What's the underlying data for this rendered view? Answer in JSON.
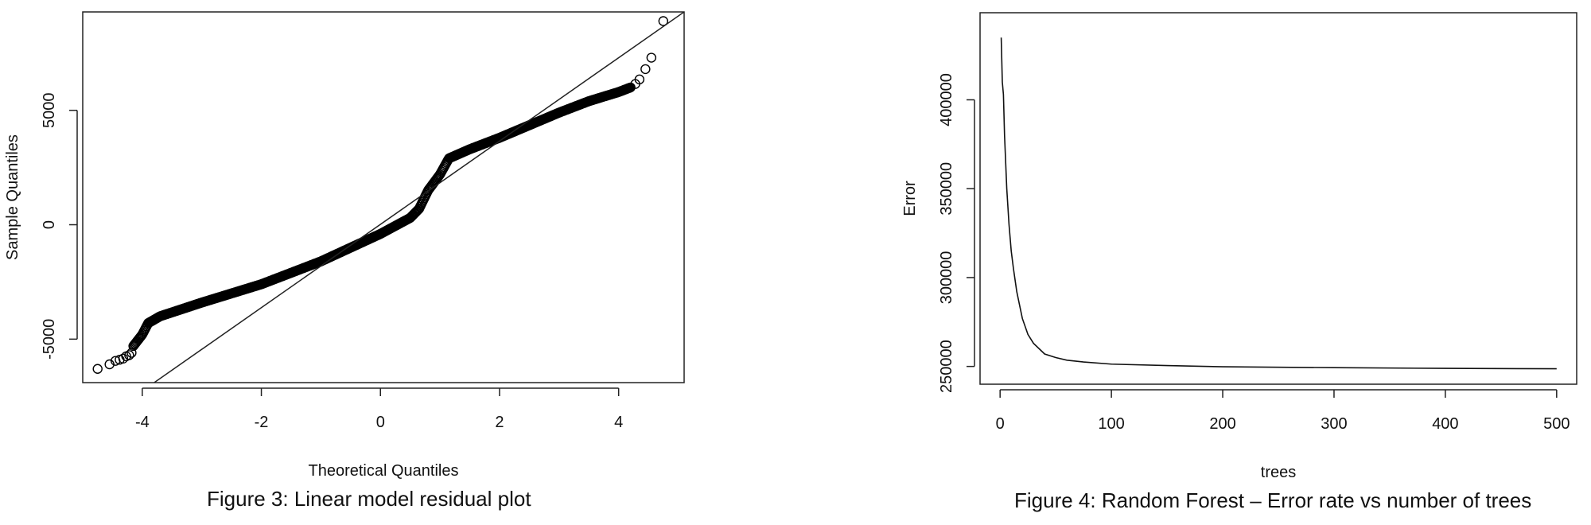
{
  "chart_data": [
    {
      "type": "scatter",
      "subtype": "qq-plot",
      "xlabel": "Theoretical Quantiles",
      "ylabel": "Sample Quantiles",
      "caption": "Figure 3: Linear model residual plot",
      "xlim": [
        -5.0,
        5.1
      ],
      "ylim": [
        -6900,
        9300
      ],
      "x_ticks": [
        -4,
        -2,
        0,
        2,
        4
      ],
      "x_tick_labels": [
        "-4",
        "-2",
        "0",
        "2",
        "4"
      ],
      "y_ticks": [
        -5000,
        0,
        5000
      ],
      "y_tick_labels": [
        "-5000",
        "0",
        "5000"
      ],
      "grid": false,
      "marker": "open-circle",
      "reference_line": [
        [
          -3.8,
          -6900
        ],
        [
          5.1,
          9300
        ]
      ],
      "quantile_curve": [
        [
          -4.15,
          -5300
        ],
        [
          -4.0,
          -4800
        ],
        [
          -3.9,
          -4300
        ],
        [
          -3.7,
          -4000
        ],
        [
          -3.0,
          -3400
        ],
        [
          -2.0,
          -2600
        ],
        [
          -1.0,
          -1600
        ],
        [
          0.0,
          -400
        ],
        [
          0.5,
          300
        ],
        [
          0.65,
          700
        ],
        [
          0.8,
          1500
        ],
        [
          1.0,
          2200
        ],
        [
          1.15,
          2900
        ],
        [
          1.5,
          3300
        ],
        [
          2.0,
          3800
        ],
        [
          3.0,
          4900
        ],
        [
          3.5,
          5400
        ],
        [
          4.0,
          5800
        ],
        [
          4.2,
          6000
        ]
      ],
      "tail_points": [
        [
          -4.75,
          -6300
        ],
        [
          -4.55,
          -6100
        ],
        [
          -4.45,
          -5950
        ],
        [
          -4.38,
          -5900
        ],
        [
          -4.32,
          -5850
        ],
        [
          -4.27,
          -5750
        ],
        [
          -4.22,
          -5700
        ],
        [
          -4.18,
          -5600
        ],
        [
          4.28,
          6150
        ],
        [
          4.35,
          6350
        ],
        [
          4.45,
          6800
        ],
        [
          4.55,
          7300
        ],
        [
          4.75,
          8900
        ]
      ]
    },
    {
      "type": "line",
      "xlabel": "trees",
      "ylabel": "Error",
      "caption": "Figure 4: Random Forest – Error rate vs number of trees",
      "xlim": [
        -18,
        518
      ],
      "ylim": [
        240000,
        449000
      ],
      "x_ticks": [
        0,
        100,
        200,
        300,
        400,
        500
      ],
      "x_tick_labels": [
        "0",
        "100",
        "200",
        "300",
        "400",
        "500"
      ],
      "y_ticks": [
        250000,
        300000,
        350000,
        400000
      ],
      "y_tick_labels": [
        "250000",
        "300000",
        "350000",
        "400000"
      ],
      "grid": false,
      "series": [
        {
          "x": [
            1,
            2,
            3,
            4,
            6,
            8,
            10,
            12,
            15,
            18,
            20,
            25,
            30,
            40,
            50,
            60,
            75,
            100,
            150,
            200,
            300,
            400,
            500
          ],
          "y": [
            435000,
            410000,
            403000,
            380000,
            350000,
            330000,
            315000,
            305000,
            292000,
            283000,
            277000,
            268000,
            263000,
            257000,
            255000,
            253500,
            252500,
            251300,
            250500,
            249800,
            249300,
            248900,
            248700
          ]
        }
      ]
    }
  ]
}
